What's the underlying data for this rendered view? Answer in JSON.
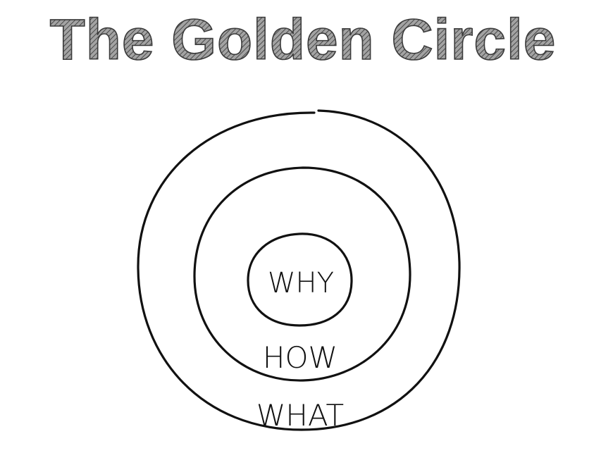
{
  "title": "The Golden Circle",
  "circles": {
    "inner": "WHY",
    "middle": "HOW",
    "outer": "WHAT"
  },
  "colors": {
    "ink": "#111111",
    "title_fill": "#7a7a7a",
    "title_outline": "#3a3a3a"
  }
}
